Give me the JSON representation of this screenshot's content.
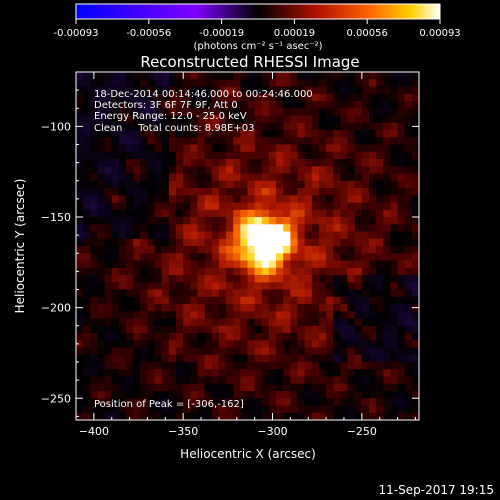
{
  "chart_data": {
    "type": "heatmap",
    "title": "Reconstructed RHESSI Image",
    "xlabel": "Heliocentric X (arcsec)",
    "ylabel": "Heliocentric Y (arcsec)",
    "xlim": [
      -410,
      -218
    ],
    "ylim": [
      -262,
      -70
    ],
    "x_ticks": [
      -400,
      -350,
      -300,
      -250
    ],
    "y_ticks": [
      -100,
      -150,
      -200,
      -250
    ],
    "colorbar": {
      "range": [
        -0.00093,
        0.00093
      ],
      "ticks": [
        "-0.00093",
        "-0.00056",
        "-0.00019",
        "0.00019",
        "0.00056",
        "0.00093"
      ],
      "unit_label": "(photons cm⁻² s⁻¹ asec⁻²)"
    },
    "annotations": [
      "18-Dec-2014 00:14:46.000 to 00:24:46.000",
      "Detectors: 3F 6F 7F 9F, Att 0",
      "Energy Range: 12.0 - 25.0 keV",
      "Clean     Total counts: 8.98E+03"
    ],
    "peak": {
      "label": "Position of Peak = [-306,-162]",
      "x": -306,
      "y": -162
    },
    "footer": "11-Sep-2017 19:15"
  }
}
